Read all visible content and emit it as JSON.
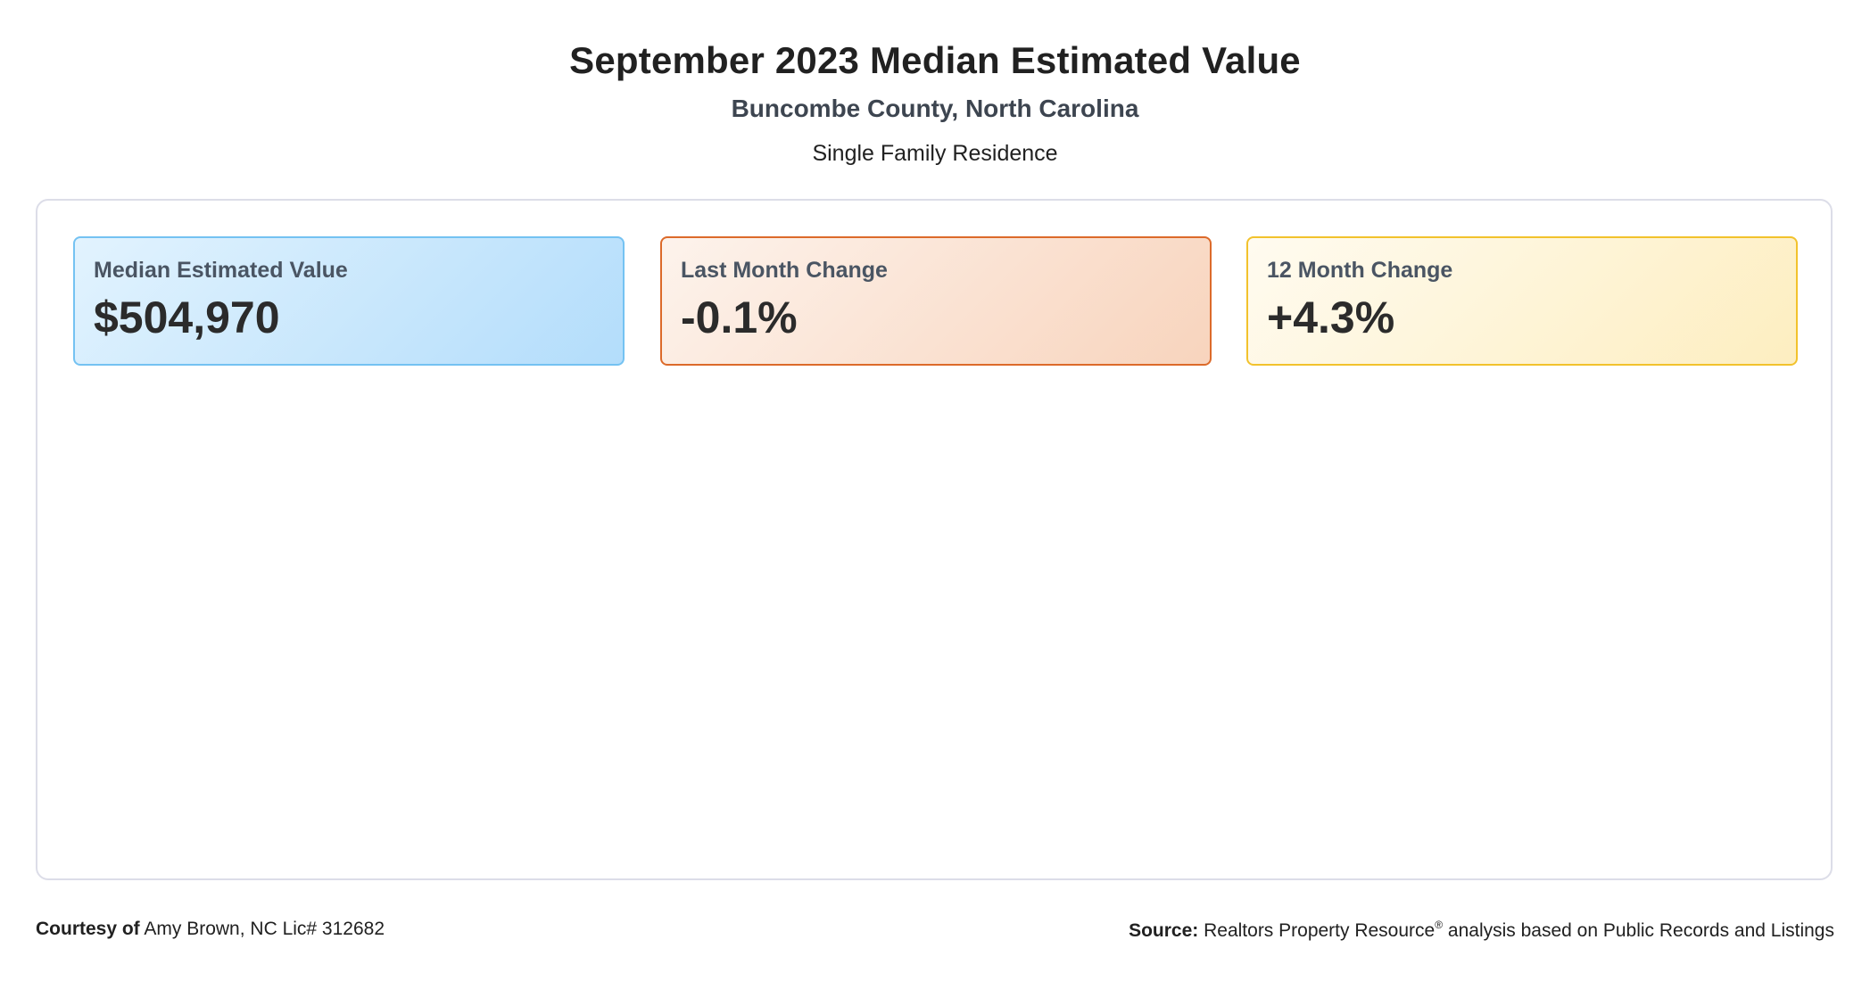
{
  "header": {
    "title": "September 2023 Median Estimated Value",
    "subtitle": "Buncombe County, North Carolina",
    "property_type": "Single Family Residence"
  },
  "cards": [
    {
      "label": "Median Estimated Value",
      "value": "$504,970",
      "accent": "#74c2f2"
    },
    {
      "label": "Last Month Change",
      "value": "-0.1%",
      "accent": "#dc6a2a"
    },
    {
      "label": "12 Month Change",
      "value": "+4.3%",
      "accent": "#f2c22c"
    }
  ],
  "footer": {
    "courtesy_label": "Courtesy of",
    "courtesy_text": "Amy Brown, NC Lic# 312682",
    "source_label": "Source:",
    "source_name": "Realtors Property Resource",
    "source_mark": "®",
    "source_text": "analysis based on Public Records and Listings"
  }
}
